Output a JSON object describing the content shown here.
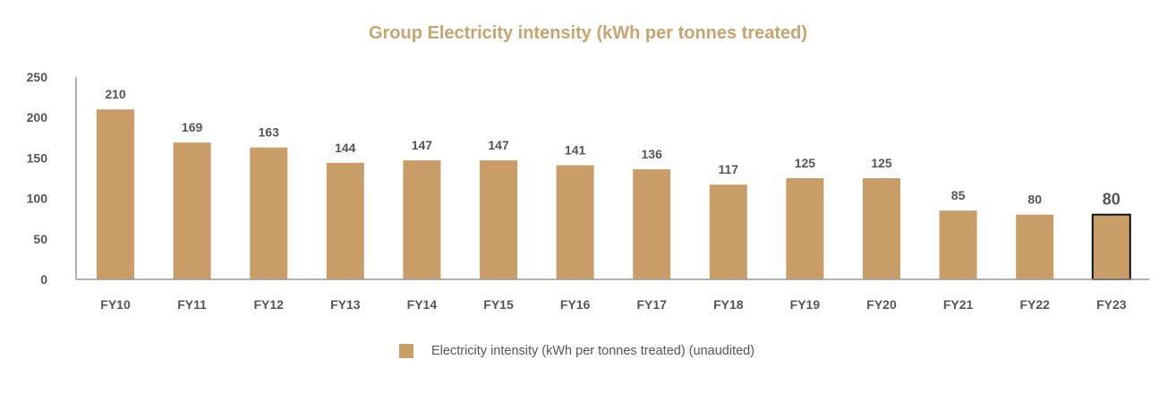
{
  "chart_data": {
    "type": "bar",
    "title": "Group Electricity intensity (kWh per tonnes treated)",
    "xlabel": "",
    "ylabel": "",
    "categories": [
      "FY10",
      "FY11",
      "FY12",
      "FY13",
      "FY14",
      "FY15",
      "FY16",
      "FY17",
      "FY18",
      "FY19",
      "FY20",
      "FY21",
      "FY22",
      "FY23"
    ],
    "series": [
      {
        "name": "Electricity intensity (kWh per tonnes treated) (unaudited)",
        "values": [
          210,
          169,
          163,
          144,
          147,
          147,
          141,
          136,
          117,
          125,
          125,
          85,
          80,
          80
        ]
      }
    ],
    "ylim": [
      0,
      250
    ],
    "yticks": [
      0,
      50,
      100,
      150,
      200,
      250
    ],
    "grid": false,
    "legend_position": "bottom",
    "highlighted_category": "FY23",
    "colors": {
      "bar": "#c89d68",
      "title": "#c8a46e",
      "text": "#555555",
      "axis": "#999999",
      "highlight_border": "#111111"
    }
  }
}
